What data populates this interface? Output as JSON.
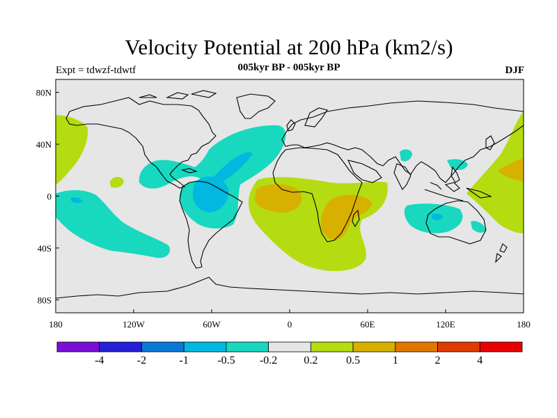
{
  "title": "Velocity Potential at 200 hPa (km2/s)",
  "subtitle": "005kyr BP - 005kyr BP",
  "experiment": "Expt = tdwzf-tdwtf",
  "season": "DJF",
  "map": {
    "lat_ticks": [
      "80N",
      "40N",
      "0",
      "40S",
      "80S"
    ],
    "lon_ticks": [
      "180",
      "120W",
      "60W",
      "0",
      "60E",
      "120E",
      "180"
    ],
    "ocean_color": "#e6e6e6",
    "coast_color": "#000000"
  },
  "colorbar": {
    "colors": [
      "#7a10d8",
      "#2320d8",
      "#0a78d8",
      "#00b8e0",
      "#18d8c0",
      "#e6e6e6",
      "#b4dc10",
      "#d8b000",
      "#e07800",
      "#e03c00",
      "#e80000"
    ],
    "labels": [
      "-4",
      "-2",
      "-1",
      "-0.5",
      "-0.2",
      "0.2",
      "0.5",
      "1",
      "2",
      "4"
    ]
  }
}
